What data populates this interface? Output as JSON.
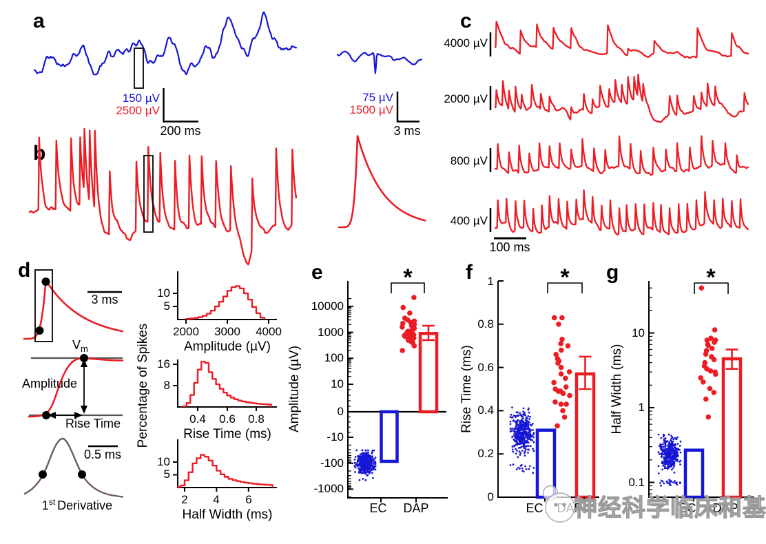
{
  "meta": {
    "watermark": "神经科学临床和基础"
  },
  "colors": {
    "blue": "#1616d6",
    "red": "#ec1c24",
    "black": "#000000",
    "gray": "#555555",
    "derivative": "#6e5a5a",
    "watermark": "#9a9a9a"
  },
  "panels": {
    "a": {
      "label": "a",
      "scalebar": {
        "v1": "150 µV",
        "v2": "2500 µV",
        "t": "200 ms"
      },
      "inset_scalebar": {
        "v1": "75 µV",
        "v2": "1500 µV",
        "t": "3 ms"
      }
    },
    "b": {
      "label": "b"
    },
    "c": {
      "label": "c",
      "rows": [
        {
          "label": "4000 µV"
        },
        {
          "label": "2000 µV"
        },
        {
          "label": "800 µV"
        },
        {
          "label": "400 µV"
        }
      ],
      "timebar": "100 ms"
    },
    "d": {
      "label": "d",
      "scalebar_top": "3 ms",
      "scalebar_mid": "0.5 ms",
      "vm_main": "V",
      "vm_sub": "m",
      "amplitude": "Amplitude",
      "rise_time": "Rise Time",
      "deriv_num": "1",
      "deriv_sup": "st",
      "deriv_word": "Derivative"
    },
    "e": {
      "label": "e"
    },
    "f": {
      "label": "f"
    },
    "g": {
      "label": "g"
    }
  },
  "chart_data": [
    {
      "id": "a_main",
      "type": "line",
      "kind": "extracellular-lfp-noise",
      "color": "blue",
      "seed": 11,
      "n": 520,
      "scale": "150 µV, 200 ms"
    },
    {
      "id": "a_inset",
      "type": "line",
      "kind": "extracellular-spike-zoom",
      "color": "blue",
      "seed": 4,
      "n": 130,
      "spike_t": 0.45,
      "spike_depth": 30,
      "spike_w": 0.012,
      "scale": "75 µV, 3 ms"
    },
    {
      "id": "b_main",
      "type": "line",
      "kind": "intracellular-spike-train",
      "color": "red",
      "seed": 21,
      "spike_times": [
        0.035,
        0.1,
        0.155,
        0.19,
        0.205,
        0.225,
        0.245,
        0.3,
        0.4,
        0.445,
        0.49,
        0.545,
        0.6,
        0.645,
        0.7,
        0.755,
        0.835,
        0.925,
        0.985
      ],
      "spike_heights": [
        105,
        100,
        108,
        105,
        120,
        130,
        142,
        95,
        100,
        112,
        105,
        102,
        106,
        103,
        98,
        95,
        103,
        112,
        106
      ],
      "baseline": [
        [
          0,
          -24
        ],
        [
          0.2,
          -23
        ],
        [
          0.26,
          -8
        ],
        [
          0.3,
          6
        ],
        [
          0.34,
          16
        ],
        [
          0.38,
          10
        ],
        [
          0.44,
          2
        ],
        [
          0.52,
          0
        ],
        [
          0.58,
          4
        ],
        [
          0.64,
          -2
        ],
        [
          0.7,
          4
        ],
        [
          0.76,
          6
        ],
        [
          0.79,
          14
        ],
        [
          0.82,
          44
        ],
        [
          0.85,
          22
        ],
        [
          0.89,
          2
        ],
        [
          0.93,
          -2
        ],
        [
          0.97,
          0
        ],
        [
          1,
          -10
        ]
      ],
      "scale": "2500 µV, 200 ms"
    },
    {
      "id": "b_inset",
      "type": "line",
      "kind": "dap-waveform-zoom",
      "color": "red",
      "scale": "1500 µV, 3 ms"
    },
    {
      "id": "d_mini",
      "type": "line",
      "kind": "dap-rising-phase-diagram",
      "color": "red",
      "scale": "3 ms"
    },
    {
      "id": "c_row1",
      "type": "line",
      "kind": "spike-train",
      "color": "red",
      "seed": 31,
      "scale_label": "4000 µV",
      "spike_times": [
        0.005,
        0.1,
        0.165,
        0.23,
        0.3,
        0.445,
        0.525,
        0.63,
        0.8,
        0.935
      ],
      "spike_heights": [
        38,
        36,
        38,
        36,
        34,
        40,
        12,
        18,
        42,
        34
      ],
      "baseline": [
        [
          0,
          -12
        ],
        [
          0.08,
          -8
        ],
        [
          0.2,
          -3
        ],
        [
          0.35,
          0
        ],
        [
          0.55,
          2
        ],
        [
          0.7,
          0
        ],
        [
          1,
          0
        ]
      ]
    },
    {
      "id": "c_row2",
      "type": "line",
      "kind": "spike-train",
      "color": "red",
      "seed": 32,
      "scale_label": "2000 µV",
      "spike_times": [
        0.005,
        0.03,
        0.055,
        0.08,
        0.105,
        0.145,
        0.18,
        0.215,
        0.3,
        0.35,
        0.385,
        0.415,
        0.45,
        0.475,
        0.5,
        0.525,
        0.55,
        0.565,
        0.585,
        0.69,
        0.72,
        0.785,
        0.815,
        0.84,
        0.87,
        0.985
      ],
      "spike_heights": [
        26,
        38,
        32,
        40,
        26,
        30,
        24,
        22,
        18,
        24,
        20,
        30,
        26,
        34,
        30,
        40,
        36,
        40,
        32,
        26,
        30,
        22,
        26,
        36,
        30,
        26
      ],
      "baseline": [
        [
          0,
          -4
        ],
        [
          0.1,
          2
        ],
        [
          0.3,
          4
        ],
        [
          0.45,
          -2
        ],
        [
          0.5,
          -6
        ],
        [
          0.55,
          -10
        ],
        [
          0.6,
          -6
        ],
        [
          0.63,
          14
        ],
        [
          0.68,
          22
        ],
        [
          0.74,
          12
        ],
        [
          0.8,
          2
        ],
        [
          0.86,
          0
        ],
        [
          0.93,
          -2
        ],
        [
          1,
          6
        ]
      ]
    },
    {
      "id": "c_row3",
      "type": "line",
      "kind": "spike-train",
      "color": "red",
      "seed": 33,
      "scale_label": "800 µV",
      "spike_times": [
        0.01,
        0.055,
        0.095,
        0.135,
        0.175,
        0.215,
        0.255,
        0.3,
        0.345,
        0.39,
        0.435,
        0.49,
        0.535,
        0.575,
        0.625,
        0.675,
        0.72,
        0.77,
        0.815,
        0.86,
        0.91,
        0.955
      ],
      "spike_heights": [
        36,
        30,
        40,
        26,
        38,
        32,
        36,
        28,
        40,
        34,
        30,
        44,
        36,
        32,
        38,
        30,
        40,
        34,
        44,
        36,
        32,
        26
      ],
      "baseline": [
        [
          0,
          0
        ],
        [
          1,
          0
        ]
      ]
    },
    {
      "id": "c_row4",
      "type": "line",
      "kind": "spike-train",
      "color": "red",
      "seed": 34,
      "scale_label": "400 µV",
      "spike_times": [
        0.01,
        0.045,
        0.08,
        0.115,
        0.15,
        0.185,
        0.215,
        0.25,
        0.285,
        0.32,
        0.35,
        0.385,
        0.42,
        0.455,
        0.49,
        0.52,
        0.555,
        0.59,
        0.625,
        0.655,
        0.69,
        0.725,
        0.76,
        0.795,
        0.83,
        0.865,
        0.9,
        0.935,
        0.97
      ],
      "spike_heights": [
        40,
        36,
        42,
        38,
        34,
        41,
        44,
        37,
        40,
        36,
        42,
        39,
        35,
        42,
        38,
        40,
        36,
        43,
        39,
        41,
        37,
        42,
        38,
        40,
        44,
        36,
        41,
        38,
        42
      ],
      "baseline": [
        [
          0,
          0
        ],
        [
          1,
          0
        ]
      ]
    },
    {
      "id": "hist_amplitude",
      "type": "histogram",
      "xlabel": "Amplitude (µV)",
      "ylabel": "Percentage of Spikes",
      "xticks": [
        2000,
        3000,
        4000
      ],
      "yticks": [
        10,
        5
      ],
      "bin_start": 2000,
      "bin_width": 100,
      "heights": [
        0.2,
        0.4,
        0.6,
        0.9,
        1.4,
        2.2,
        3.4,
        5,
        6.8,
        8.8,
        11,
        12.4,
        12.8,
        11.9,
        10,
        7.6,
        4.8,
        2.4,
        0.7
      ]
    },
    {
      "id": "hist_risetime",
      "type": "histogram",
      "xlabel": "Rise Time (ms)",
      "ylabel": "Percentage of Spikes",
      "xticks": [
        0.4,
        0.6,
        0.8
      ],
      "yticks": [
        16,
        8
      ],
      "bin_start": 0.3,
      "bin_width": 0.025,
      "heights": [
        0.3,
        1.5,
        4.5,
        9,
        14,
        17,
        16.5,
        13,
        10.5,
        8.5,
        6.8,
        5.4,
        4.3,
        3.5,
        2.9,
        2.4,
        2.1,
        1.8,
        1.6,
        1.4,
        1.25,
        1.1,
        1.0,
        0.9
      ]
    },
    {
      "id": "hist_halfwidth",
      "type": "histogram",
      "xlabel": "Half Width (ms)",
      "ylabel": "Percentage of Spikes",
      "xticks": [
        2,
        4,
        6
      ],
      "yticks": [
        10,
        5
      ],
      "bin_start": 1.5,
      "bin_width": 0.25,
      "heights": [
        0.2,
        0.8,
        2.8,
        6,
        9.5,
        11.5,
        12.8,
        12.1,
        10.6,
        8.6,
        6.6,
        5.2,
        4.2,
        3.4,
        2.9,
        2.5,
        2.2,
        1.9,
        1.7,
        1.5,
        1.35,
        1.2,
        1.1,
        1.0
      ]
    },
    {
      "id": "panel_e",
      "type": "scatter-bar",
      "ylabel": "Amplitude (µV)",
      "yscale": "symlog",
      "yticks": [
        10000,
        1000,
        100,
        10,
        0,
        -10,
        -100,
        -1000
      ],
      "categories": [
        "EC",
        "DAP"
      ],
      "sig": "*",
      "ec": {
        "color": "blue",
        "n": 420,
        "dist": "lognormal",
        "log_mean": 2.0,
        "log_sd": 0.2,
        "lmin": 1.5,
        "lmax": 2.65,
        "sign": -1,
        "bar": -85
      },
      "dap": {
        "color": "red",
        "bar": 900,
        "err": [
          500,
          1800
        ],
        "values": [
          22000,
          9000,
          5500,
          3500,
          3000,
          2700,
          2400,
          2200,
          2000,
          1800,
          1600,
          1400,
          1200,
          1100,
          1000,
          950,
          900,
          850,
          800,
          750,
          700,
          650,
          600,
          500,
          450,
          400,
          300,
          200
        ]
      }
    },
    {
      "id": "panel_f",
      "type": "scatter-bar",
      "ylabel": "Rise Time (ms)",
      "ylim": [
        0,
        1
      ],
      "yticks": [
        1,
        0.8,
        0.6,
        0.4,
        0.2,
        0
      ],
      "categories": [
        "EC",
        "DAP"
      ],
      "sig": "*",
      "ec": {
        "color": "blue",
        "n": 430,
        "dist": "normal",
        "mean": 0.3,
        "sd": 0.042,
        "min": 0.17,
        "max": 0.42,
        "bar": 0.31,
        "sub": {
          "n": 16,
          "mean": 0.135,
          "sd": 0.012,
          "min": 0.11,
          "max": 0.16
        }
      },
      "dap": {
        "color": "red",
        "bar": 0.57,
        "err": [
          0.5,
          0.65
        ],
        "values": [
          0.83,
          0.83,
          0.8,
          0.73,
          0.71,
          0.7,
          0.68,
          0.66,
          0.64,
          0.63,
          0.62,
          0.6,
          0.58,
          0.57,
          0.55,
          0.53,
          0.51,
          0.5,
          0.49,
          0.49,
          0.48,
          0.47,
          0.44,
          0.43,
          0.4,
          0.37,
          0.33,
          0.43
        ]
      }
    },
    {
      "id": "panel_g",
      "type": "scatter-bar",
      "ylabel": "Half Width (ms)",
      "yscale": "log",
      "yticks": [
        10,
        1,
        0.1
      ],
      "categories": [
        "EC",
        "DAP"
      ],
      "sig": "*",
      "ec": {
        "color": "blue",
        "n": 360,
        "dist": "lognormal",
        "log_mean": -0.62,
        "log_sd": 0.11,
        "lmin": -0.88,
        "lmax": -0.36,
        "bar": 0.27,
        "sub": {
          "n": 25,
          "log_mean": -1.0,
          "log_sd": 0.025,
          "lmin": -1.06,
          "lmax": -0.94
        }
      },
      "dap": {
        "color": "red",
        "bar": 4.5,
        "err": [
          3.3,
          6.0
        ],
        "values": [
          40,
          11,
          8.5,
          8,
          8,
          7.5,
          7,
          6.8,
          6.2,
          5.8,
          5.2,
          4.8,
          4.4,
          4,
          3.6,
          3.3,
          3.1,
          3,
          2.8,
          2.5,
          2.2,
          1.8,
          1.6,
          1.3,
          0.75
        ]
      }
    }
  ]
}
